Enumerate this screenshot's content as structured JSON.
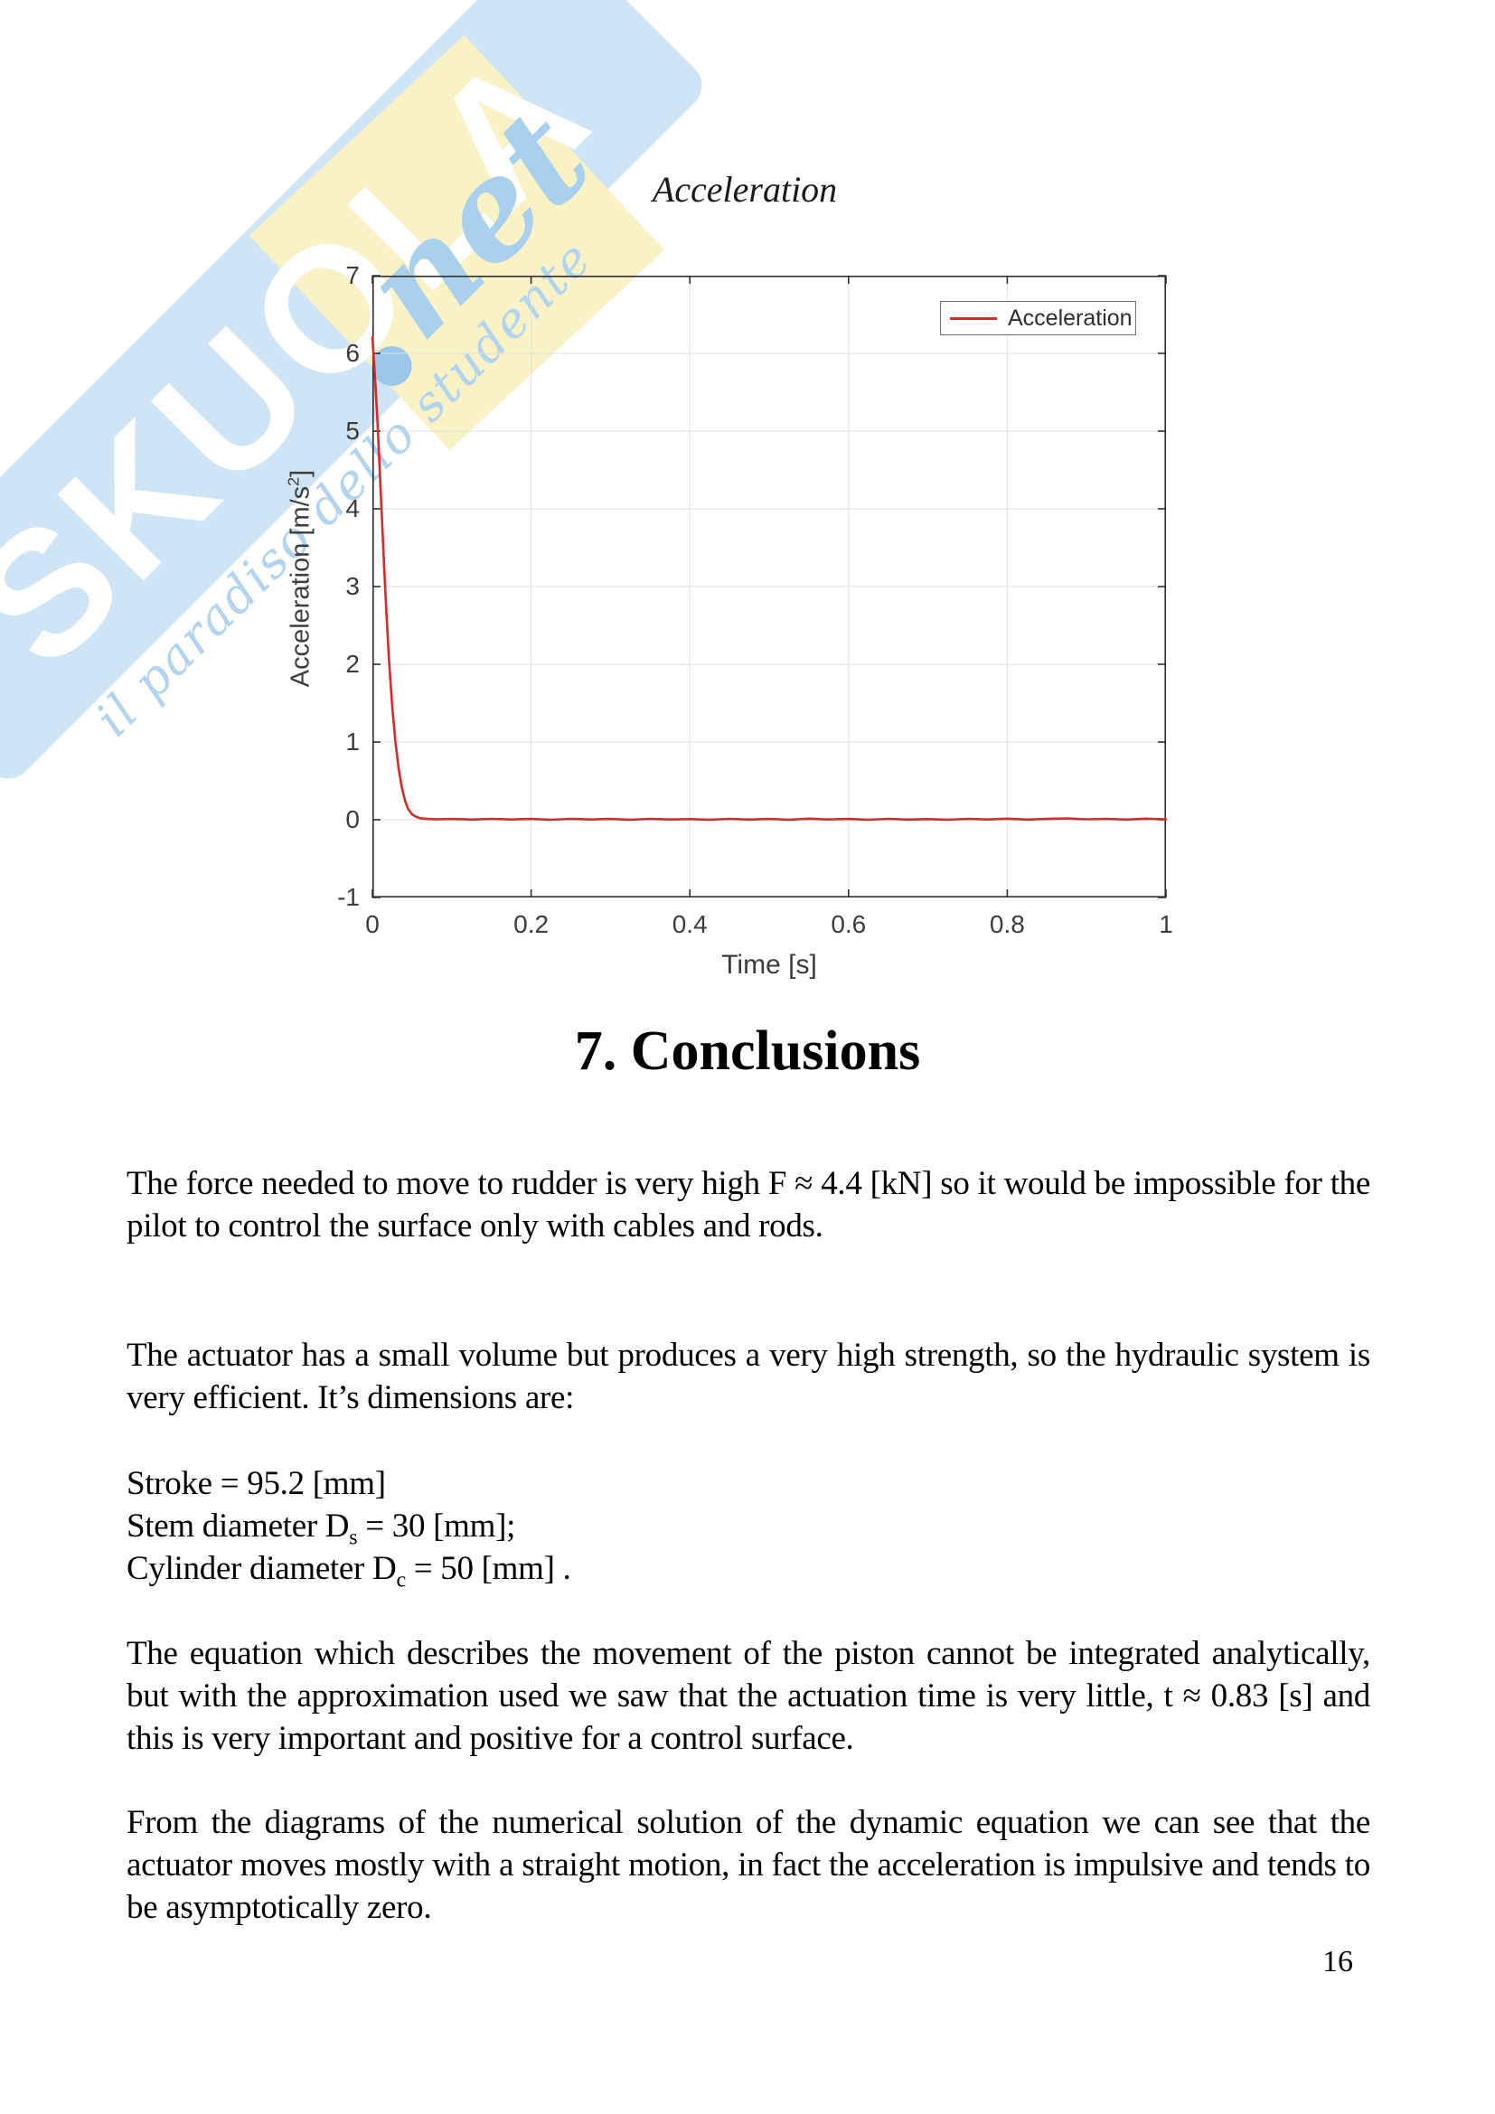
{
  "watermark": {
    "brand": "SKUOLA",
    "net": "net",
    "slogan": "il paradiso dello studente",
    "band_color": "#cfe4f4",
    "diamond_color": "#f8f2c6",
    "script_color": "#a9d0ec"
  },
  "figure": {
    "title": "Acceleration",
    "xlabel": "Time [s]",
    "ylabel_main": "Acceleration [m/s",
    "ylabel_sup": "2",
    "ylabel_close": "]",
    "legend": {
      "label": "Acceleration",
      "line_color": "#d62a2a"
    }
  },
  "chart_data": {
    "type": "line",
    "title": "Acceleration",
    "xlabel": "Time [s]",
    "ylabel": "Acceleration [m/s^2]",
    "xlim": [
      0,
      1
    ],
    "ylim": [
      -1,
      7
    ],
    "xticks": [
      0,
      0.2,
      0.4,
      0.6,
      0.8,
      1
    ],
    "xtick_labels": [
      "0",
      "0.2",
      "0.4",
      "0.6",
      "0.8",
      "1"
    ],
    "yticks": [
      -1,
      0,
      1,
      2,
      3,
      4,
      5,
      6,
      7
    ],
    "ytick_labels": [
      "-1",
      "0",
      "1",
      "2",
      "3",
      "4",
      "5",
      "6",
      "7"
    ],
    "grid": true,
    "legend_position": "northeast",
    "series": [
      {
        "name": "Acceleration",
        "color": "#d62a2a",
        "points": [
          [
            0,
            6.21
          ],
          [
            0.003,
            5.75
          ],
          [
            0.006,
            5.2
          ],
          [
            0.009,
            4.55
          ],
          [
            0.012,
            3.9
          ],
          [
            0.015,
            3.2
          ],
          [
            0.018,
            2.6
          ],
          [
            0.021,
            2.05
          ],
          [
            0.025,
            1.45
          ],
          [
            0.029,
            1.0
          ],
          [
            0.033,
            0.66
          ],
          [
            0.037,
            0.42
          ],
          [
            0.041,
            0.25
          ],
          [
            0.045,
            0.14
          ],
          [
            0.05,
            0.07
          ],
          [
            0.055,
            0.04
          ],
          [
            0.06,
            0.02
          ],
          [
            0.07,
            0.01
          ],
          [
            0.08,
            0.005
          ],
          [
            0.1,
            0.01
          ],
          [
            0.125,
            0.002
          ],
          [
            0.15,
            0.012
          ],
          [
            0.175,
            0.004
          ],
          [
            0.2,
            0.01
          ],
          [
            0.225,
            0.0
          ],
          [
            0.25,
            0.012
          ],
          [
            0.275,
            0.003
          ],
          [
            0.3,
            0.01
          ],
          [
            0.325,
            0.0
          ],
          [
            0.35,
            0.012
          ],
          [
            0.375,
            0.004
          ],
          [
            0.4,
            0.008
          ],
          [
            0.425,
            0.0
          ],
          [
            0.45,
            0.012
          ],
          [
            0.475,
            0.002
          ],
          [
            0.5,
            0.01
          ],
          [
            0.525,
            0.0
          ],
          [
            0.55,
            0.014
          ],
          [
            0.575,
            0.004
          ],
          [
            0.6,
            0.01
          ],
          [
            0.625,
            0.0
          ],
          [
            0.65,
            0.012
          ],
          [
            0.675,
            0.002
          ],
          [
            0.7,
            0.008
          ],
          [
            0.725,
            0.0
          ],
          [
            0.75,
            0.012
          ],
          [
            0.775,
            0.004
          ],
          [
            0.8,
            0.014
          ],
          [
            0.825,
            0.002
          ],
          [
            0.85,
            0.01
          ],
          [
            0.875,
            0.018
          ],
          [
            0.9,
            0.006
          ],
          [
            0.925,
            0.012
          ],
          [
            0.95,
            0.002
          ],
          [
            0.975,
            0.014
          ],
          [
            1,
            0.005
          ]
        ]
      }
    ]
  },
  "content": {
    "heading": "7. Conclusions",
    "p1": "The force needed to move to rudder is very high F ≈ 4.4 [kN] so it would be impossible for the pilot to control the surface only with cables and rods.",
    "p2": "The actuator has a small volume but produces a very high strength, so the hydraulic system is very efficient. It’s dimensions are:",
    "dims": [
      {
        "pre": "Stroke = 95.2 [mm]",
        "sub": "",
        "post": ""
      },
      {
        "pre": "Stem diameter D",
        "sub": "s",
        "post": " = 30 [mm];"
      },
      {
        "pre": "Cylinder diameter D",
        "sub": "c",
        "post": " = 50 [mm] ."
      }
    ],
    "p3": "The equation which describes the movement of the piston cannot be integrated analytically, but with the approximation used we saw that the actuation time is very little, t ≈ 0.83 [s] and this is very important and positive for a control surface.",
    "p4": "From the diagrams of the numerical solution of the dynamic equation we can see that the actuator moves mostly with a straight motion, in fact the acceleration is impulsive and tends to be asymptotically zero.",
    "page_number": "16"
  }
}
